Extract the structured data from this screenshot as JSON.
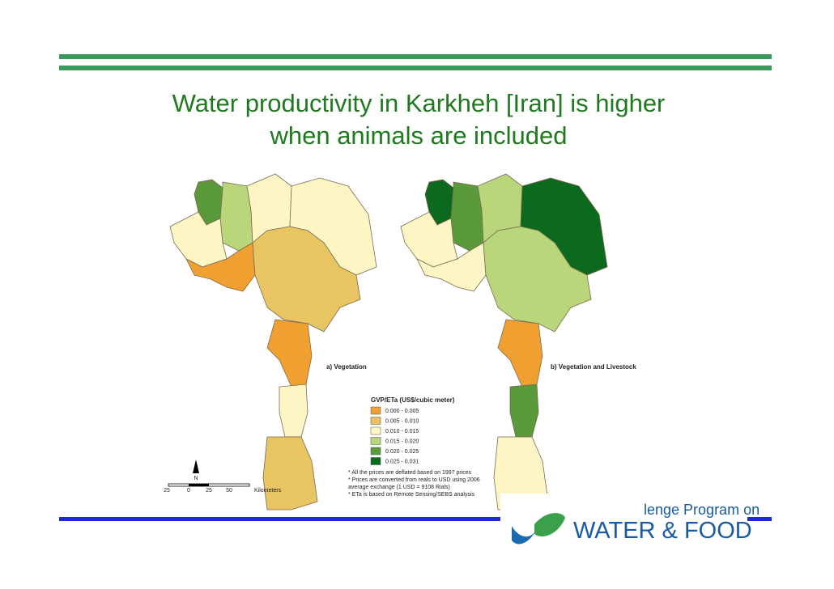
{
  "slide": {
    "title": [
      "Water productivity in Karkheh [Iran] is higher",
      "when animals are included"
    ],
    "maps": [
      {
        "label": "a) Vegetation"
      },
      {
        "label": "b) Vegetation and Livestock"
      }
    ],
    "legend": {
      "title": "GVP/ETa (US$/cubic meter)",
      "items": [
        {
          "label": "0.000 - 0.005",
          "color": "#f0a030"
        },
        {
          "label": "0.005 - 0.010",
          "color": "#e8c462"
        },
        {
          "label": "0.010 - 0.015",
          "color": "#fdf6c4"
        },
        {
          "label": "0.015 - 0.020",
          "color": "#b9d67a"
        },
        {
          "label": "0.020 - 0.025",
          "color": "#5a9a3a"
        },
        {
          "label": "0.025 - 0.031",
          "color": "#0b6a1e"
        }
      ]
    },
    "notes": [
      "* All the prices are deflated based on 1997 prices",
      "* Prices are converted from reals to USD using 2006",
      "average exchange (1 USD = 9108 Rials)",
      "* ETa is based on Remote Sensing/SEBS analysis"
    ],
    "scale": {
      "north": "N",
      "ticks": [
        "25",
        "0",
        "25",
        "50"
      ],
      "unit": "Kilometers"
    },
    "logo": {
      "line1": "lenge Program on",
      "line2": "WATER & FOOD"
    }
  }
}
